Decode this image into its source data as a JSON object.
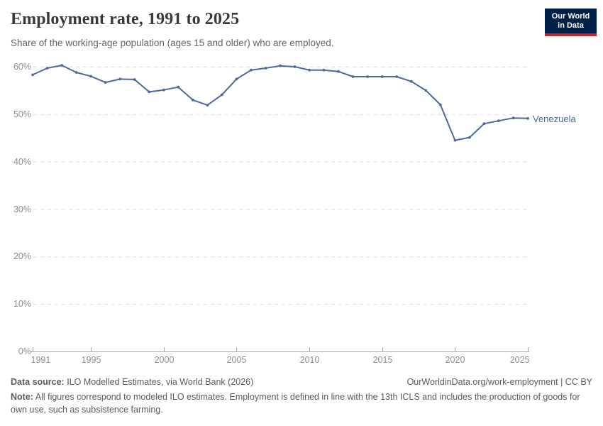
{
  "header": {
    "title": "Employment rate, 1991 to 2025",
    "subtitle": "Share of the working-age population (ages 15 and older) who are employed.",
    "logo": {
      "line1": "Our World",
      "line2": "in Data"
    }
  },
  "chart_data": {
    "type": "line",
    "title": "Employment rate, 1991 to 2025",
    "xlabel": "",
    "ylabel": "",
    "ylim": [
      0,
      60
    ],
    "grid": "horizontal-dashed",
    "legend_position": "end-of-line",
    "x_range": [
      1991,
      2025
    ],
    "xticks": [
      "1991",
      "1995",
      "2000",
      "2005",
      "2010",
      "2015",
      "2020",
      "2025"
    ],
    "xtick_years": [
      1991,
      1995,
      2000,
      2005,
      2010,
      2015,
      2020,
      2025
    ],
    "ytick_values": [
      0,
      10,
      20,
      30,
      40,
      50,
      60
    ],
    "ytick_labels": [
      "0%",
      "10%",
      "20%",
      "30%",
      "40%",
      "50%",
      "60%"
    ],
    "series": [
      {
        "name": "Venezuela",
        "color": "#4C6A9C",
        "x": [
          1991,
          1992,
          1993,
          1994,
          1995,
          1996,
          1997,
          1998,
          1999,
          2000,
          2001,
          2002,
          2003,
          2004,
          2005,
          2006,
          2007,
          2008,
          2009,
          2010,
          2011,
          2012,
          2013,
          2014,
          2015,
          2016,
          2017,
          2018,
          2019,
          2020,
          2021,
          2022,
          2023,
          2024,
          2025
        ],
        "values": [
          58.3,
          59.7,
          60.3,
          58.8,
          58.0,
          56.7,
          57.4,
          57.3,
          54.7,
          55.1,
          55.7,
          53.0,
          51.9,
          54.1,
          57.4,
          59.3,
          59.7,
          60.2,
          60.0,
          59.3,
          59.3,
          59.0,
          57.9,
          57.9,
          57.9,
          57.9,
          56.9,
          55.0,
          52.0,
          44.5,
          45.1,
          48.0,
          48.6,
          49.2,
          49.1
        ]
      }
    ],
    "entity_label": "Venezuela"
  },
  "footer": {
    "source_label": "Data source:",
    "source_text": " ILO Modelled Estimates, via World Bank (2026)",
    "link_text": "OurWorldinData.org/work-employment | CC BY",
    "note_label": "Note:",
    "note_text": " All figures correspond to modeled ILO estimates. Employment is defined in line with the 13th ICLS and includes the production of goods for own use, such as subsistence farming."
  },
  "colors": {
    "line": "#4C6A9C",
    "grid": "#dddddd",
    "axis": "#a9a9a9",
    "tick_text": "#8d8d8d",
    "logo_bg": "#002147",
    "logo_accent": "#C0262C"
  }
}
